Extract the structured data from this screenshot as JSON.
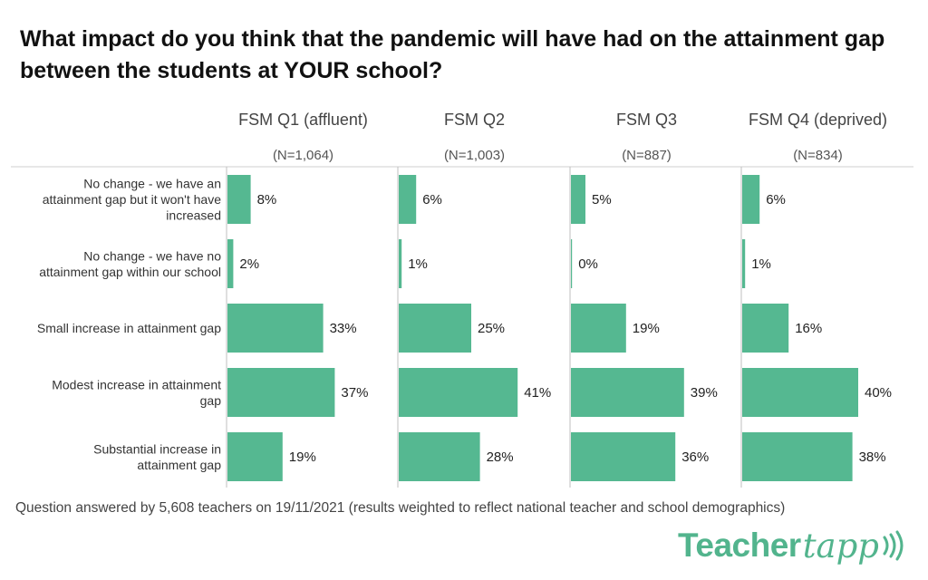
{
  "chart_data": {
    "type": "bar",
    "orientation": "horizontal",
    "title": "What impact do you think that the pandemic will have had on the attainment gap between the students at YOUR school?",
    "categories": [
      [
        "No change - we have an",
        "attainment gap but it won't have",
        "increased"
      ],
      [
        "No change - we have no",
        "attainment gap within our school"
      ],
      [
        "Small increase in attainment gap"
      ],
      [
        "Modest increase in attainment",
        "gap"
      ],
      [
        "Substantial increase in",
        "attainment gap"
      ]
    ],
    "panels": [
      {
        "name": "FSM Q1 (affluent)",
        "n": "(N=1,064)",
        "values": [
          8,
          2,
          33,
          37,
          19
        ],
        "labels": [
          "8%",
          "2%",
          "33%",
          "37%",
          "19%"
        ]
      },
      {
        "name": "FSM Q2",
        "n": "(N=1,003)",
        "values": [
          6,
          1,
          25,
          41,
          28
        ],
        "labels": [
          "6%",
          "1%",
          "25%",
          "41%",
          "28%"
        ]
      },
      {
        "name": "FSM Q3",
        "n": "(N=887)",
        "values": [
          5,
          0,
          19,
          39,
          36
        ],
        "labels": [
          "5%",
          "0%",
          "19%",
          "39%",
          "36%"
        ]
      },
      {
        "name": "FSM Q4 (deprived)",
        "n": "(N=834)",
        "values": [
          6,
          1,
          16,
          40,
          38
        ],
        "labels": [
          "6%",
          "1%",
          "16%",
          "40%",
          "38%"
        ]
      }
    ],
    "xlim": [
      0,
      50
    ],
    "bar_color": "#55b891",
    "gridlines": false,
    "legend": "none"
  },
  "footnote": "Question answered by 5,608 teachers on 19/11/2021 (results weighted to reflect national teacher and school demographics)",
  "logo": {
    "part1": "Teacher",
    "part2": "tapp"
  }
}
